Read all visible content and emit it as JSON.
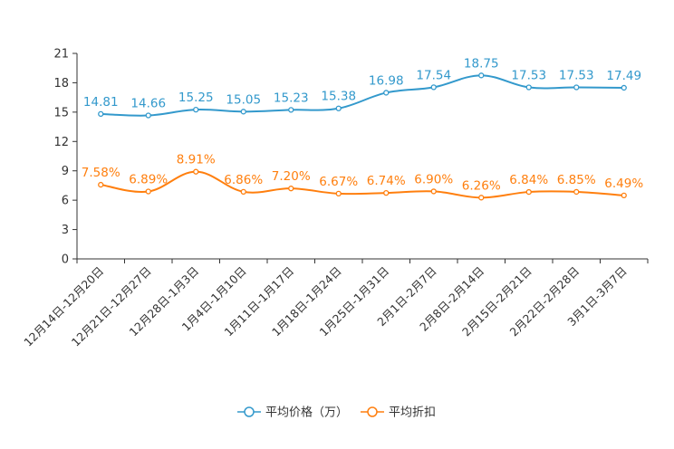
{
  "chart_data": {
    "type": "line",
    "categories": [
      "12月14日-12月20日",
      "12月21日-12月27日",
      "12月28日-1月3日",
      "1月4日-1月10日",
      "1月11日-1月17日",
      "1月18日-1月24日",
      "1月25日-1月31日",
      "2月1日-2月7日",
      "2月8日-2月14日",
      "2月15日-2月21日",
      "2月22日-2月28日",
      "3月1日-3月7日"
    ],
    "ylim": [
      0,
      21
    ],
    "yticks": [
      0,
      3,
      6,
      9,
      12,
      15,
      18,
      21
    ],
    "grid": false,
    "legend_position": "bottom-center",
    "series": [
      {
        "name": "平均价格（万）",
        "color": "#3399cc",
        "values": [
          14.81,
          14.66,
          15.25,
          15.05,
          15.23,
          15.38,
          16.98,
          17.54,
          18.75,
          17.53,
          17.53,
          17.49
        ],
        "labels": [
          "14.81",
          "14.66",
          "15.25",
          "15.05",
          "15.23",
          "15.38",
          "16.98",
          "17.54",
          "18.75",
          "17.53",
          "17.53",
          "17.49"
        ]
      },
      {
        "name": "平均折扣",
        "color": "#ff7f0e",
        "values": [
          7.58,
          6.89,
          8.91,
          6.86,
          7.2,
          6.67,
          6.74,
          6.9,
          6.26,
          6.84,
          6.85,
          6.49
        ],
        "labels": [
          "7.58%",
          "6.89%",
          "8.91%",
          "6.86%",
          "7.20%",
          "6.67%",
          "6.74%",
          "6.90%",
          "6.26%",
          "6.84%",
          "6.85%",
          "6.49%"
        ]
      }
    ]
  }
}
